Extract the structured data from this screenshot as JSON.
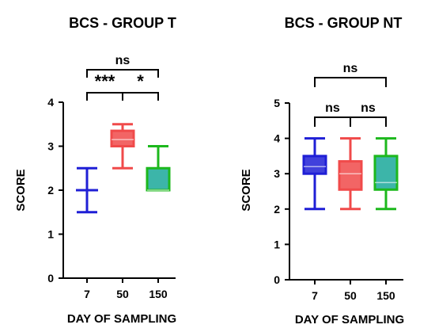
{
  "chart_data": [
    {
      "type": "box",
      "title": "BCS - GROUP T",
      "xlabel": "DAY OF SAMPLING",
      "ylabel": "SCORE",
      "ylim": [
        0,
        4
      ],
      "yticks": [
        "0",
        "1",
        "2",
        "3",
        "4"
      ],
      "categories": [
        "7",
        "50",
        "150"
      ],
      "series": [
        {
          "category": "7",
          "min": 1.5,
          "q1": 2.0,
          "median": 2.0,
          "q3": 2.0,
          "max": 2.5,
          "color": "#1f1fd6",
          "fill": "#1f1fd6"
        },
        {
          "category": "50",
          "min": 2.5,
          "q1": 3.0,
          "median": 3.15,
          "q3": 3.35,
          "max": 3.5,
          "color": "#f04a4a",
          "fill": "#f04a4a"
        },
        {
          "category": "150",
          "min": 2.0,
          "q1": 2.0,
          "median": 2.0,
          "q3": 2.5,
          "max": 3.0,
          "color": "#1db81d",
          "fill": "#1aa89a"
        }
      ],
      "annotations": [
        {
          "from": "7",
          "to": "50",
          "level": 1,
          "label": "***"
        },
        {
          "from": "50",
          "to": "150",
          "level": 1,
          "label": "*"
        },
        {
          "from": "7",
          "to": "150",
          "level": 2,
          "label": "ns"
        }
      ]
    },
    {
      "type": "box",
      "title": "BCS - GROUP NT",
      "xlabel": "DAY OF SAMPLING",
      "ylabel": "SCORE",
      "ylim": [
        0,
        5
      ],
      "yticks": [
        "0",
        "1",
        "2",
        "3",
        "4",
        "5"
      ],
      "categories": [
        "7",
        "50",
        "150"
      ],
      "series": [
        {
          "category": "7",
          "min": 2.0,
          "q1": 3.0,
          "median": 3.2,
          "q3": 3.5,
          "max": 4.0,
          "color": "#1f1fd6",
          "fill": "#1f1fd6"
        },
        {
          "category": "50",
          "min": 2.0,
          "q1": 2.55,
          "median": 3.0,
          "q3": 3.35,
          "max": 4.0,
          "color": "#f04a4a",
          "fill": "#f04a4a"
        },
        {
          "category": "150",
          "min": 2.0,
          "q1": 2.55,
          "median": 2.75,
          "q3": 3.5,
          "max": 4.0,
          "color": "#1db81d",
          "fill": "#1aa89a"
        }
      ],
      "annotations": [
        {
          "from": "7",
          "to": "50",
          "level": 1,
          "label": "ns"
        },
        {
          "from": "50",
          "to": "150",
          "level": 1,
          "label": "ns"
        },
        {
          "from": "7",
          "to": "150",
          "level": 2,
          "label": "ns"
        }
      ]
    }
  ]
}
